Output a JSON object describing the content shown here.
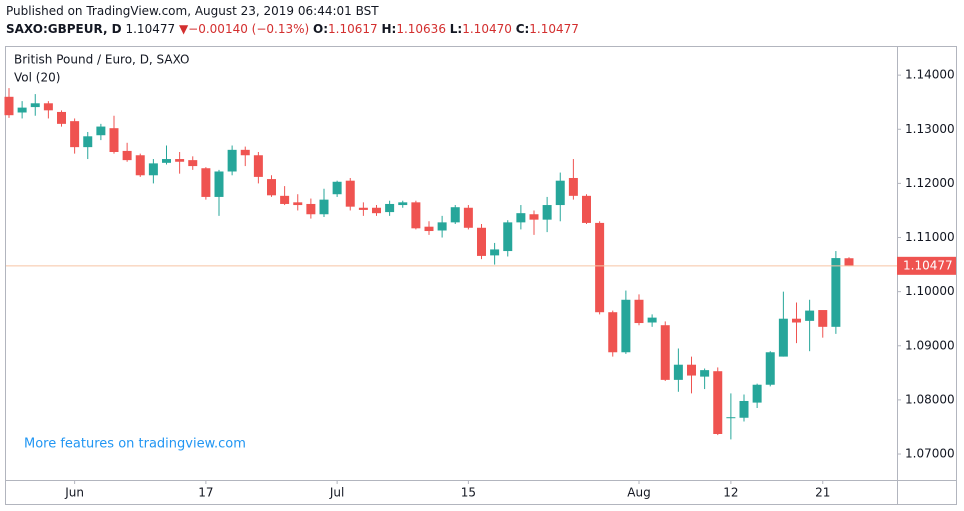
{
  "header": {
    "published": "Published on TradingView.com, August 23, 2019 06:44:01 BST",
    "symbol": "SAXO:GBPEUR, D",
    "last": "1.10477",
    "change": "−0.00140 (−0.13%)",
    "o_label": "O:",
    "o": "1.10617",
    "h_label": "H:",
    "h": "1.10636",
    "l_label": "L:",
    "l": "1.10470",
    "c_label": "C:",
    "c": "1.10477"
  },
  "chart_data": {
    "type": "candlestick",
    "title": "British Pound / Euro, D, SAXO",
    "subtitle": "Vol (20)",
    "watermark": "More features on tradingview.com",
    "categories": [
      null,
      null,
      null,
      null,
      null,
      "Jun",
      null,
      null,
      null,
      null,
      null,
      null,
      null,
      null,
      null,
      "17",
      null,
      null,
      null,
      null,
      null,
      null,
      null,
      null,
      null,
      "Jul",
      null,
      null,
      null,
      null,
      null,
      null,
      null,
      null,
      null,
      "15",
      null,
      null,
      null,
      null,
      null,
      null,
      null,
      null,
      null,
      null,
      null,
      null,
      "Aug",
      null,
      null,
      null,
      null,
      null,
      null,
      "12",
      null,
      null,
      null,
      null,
      null,
      null,
      "21",
      null,
      null
    ],
    "open": [
      1.136,
      1.1331,
      1.1341,
      1.1348,
      1.1332,
      1.1315,
      1.1267,
      1.1289,
      1.1302,
      1.126,
      1.1252,
      1.1215,
      1.1238,
      1.1245,
      1.1243,
      1.1228,
      1.1175,
      1.1222,
      1.1262,
      1.1252,
      1.1208,
      1.1177,
      1.1165,
      1.1162,
      1.1143,
      1.118,
      1.1205,
      1.1155,
      1.1155,
      1.1147,
      1.116,
      1.1165,
      1.112,
      1.1113,
      1.1128,
      1.1155,
      1.1118,
      1.1067,
      1.1075,
      1.1128,
      1.1143,
      1.1133,
      1.116,
      1.121,
      1.1177,
      1.1127,
      1.0962,
      1.0888,
      1.0985,
      1.0943,
      1.0938,
      1.0837,
      1.0865,
      1.0843,
      1.0853,
      1.0767,
      1.0767,
      1.0795,
      1.0828,
      1.088,
      1.095,
      1.0946,
      1.0966,
      1.0935,
      1.10617
    ],
    "high": [
      1.1376,
      1.1352,
      1.1365,
      1.1352,
      1.1335,
      1.132,
      1.1295,
      1.131,
      1.1325,
      1.1275,
      1.1255,
      1.1245,
      1.127,
      1.1258,
      1.125,
      1.123,
      1.1225,
      1.127,
      1.1268,
      1.1258,
      1.1215,
      1.1195,
      1.118,
      1.1172,
      1.119,
      1.1205,
      1.121,
      1.1165,
      1.116,
      1.1168,
      1.1168,
      1.1168,
      1.113,
      1.114,
      1.116,
      1.116,
      1.1125,
      1.109,
      1.1132,
      1.116,
      1.115,
      1.1175,
      1.122,
      1.1245,
      1.118,
      1.113,
      1.0965,
      1.1002,
      1.0995,
      1.0958,
      1.0945,
      1.0895,
      1.088,
      1.0858,
      1.086,
      1.0812,
      1.081,
      1.083,
      1.089,
      1.1,
      1.098,
      1.0985,
      1.0965,
      1.1075,
      1.10636
    ],
    "low": [
      1.1321,
      1.132,
      1.1325,
      1.132,
      1.1305,
      1.1255,
      1.1245,
      1.128,
      1.1255,
      1.124,
      1.1212,
      1.12,
      1.1235,
      1.1218,
      1.1225,
      1.117,
      1.114,
      1.1215,
      1.1232,
      1.12,
      1.1175,
      1.116,
      1.115,
      1.1135,
      1.1138,
      1.1175,
      1.115,
      1.114,
      1.114,
      1.114,
      1.1155,
      1.1115,
      1.1105,
      1.11,
      1.1125,
      1.1115,
      1.106,
      1.105,
      1.1065,
      1.1115,
      1.1105,
      1.111,
      1.113,
      1.117,
      1.1125,
      1.0958,
      1.088,
      1.0885,
      1.0938,
      1.0935,
      1.0835,
      1.0815,
      1.0812,
      1.082,
      1.0735,
      1.0727,
      1.076,
      1.0785,
      1.0825,
      1.088,
      1.0905,
      1.089,
      1.0915,
      1.0922,
      1.1047
    ],
    "close": [
      1.1326,
      1.134,
      1.1348,
      1.1335,
      1.131,
      1.1267,
      1.1287,
      1.1305,
      1.1258,
      1.1243,
      1.1215,
      1.1237,
      1.1245,
      1.124,
      1.1232,
      1.1175,
      1.1222,
      1.1262,
      1.1252,
      1.1212,
      1.1178,
      1.1162,
      1.116,
      1.1143,
      1.117,
      1.1203,
      1.1157,
      1.1151,
      1.1145,
      1.1162,
      1.1165,
      1.1117,
      1.1112,
      1.1128,
      1.1156,
      1.1118,
      1.1066,
      1.1078,
      1.1128,
      1.1145,
      1.1133,
      1.116,
      1.1205,
      1.1177,
      1.1127,
      1.0962,
      1.0888,
      1.0985,
      1.0942,
      1.0952,
      1.0837,
      1.0865,
      1.0845,
      1.0855,
      1.0737,
      1.0768,
      1.0798,
      1.0828,
      1.0888,
      1.095,
      1.0943,
      1.0965,
      1.0935,
      1.1062,
      1.10477
    ],
    "up_color": "#26a69a",
    "down_color": "#ef5350",
    "last_line_color": "#f7c4a5",
    "ylim": [
      1.0652,
      1.1452
    ],
    "yticks": [
      {
        "value": 1.07,
        "label": "1.07000"
      },
      {
        "value": 1.08,
        "label": "1.08000"
      },
      {
        "value": 1.09,
        "label": "1.09000"
      },
      {
        "value": 1.1,
        "label": "1.10000"
      },
      {
        "value": 1.11,
        "label": "1.11000"
      },
      {
        "value": 1.12,
        "label": "1.12000"
      },
      {
        "value": 1.13,
        "label": "1.13000"
      },
      {
        "value": 1.14,
        "label": "1.14000"
      }
    ],
    "grid": false
  }
}
